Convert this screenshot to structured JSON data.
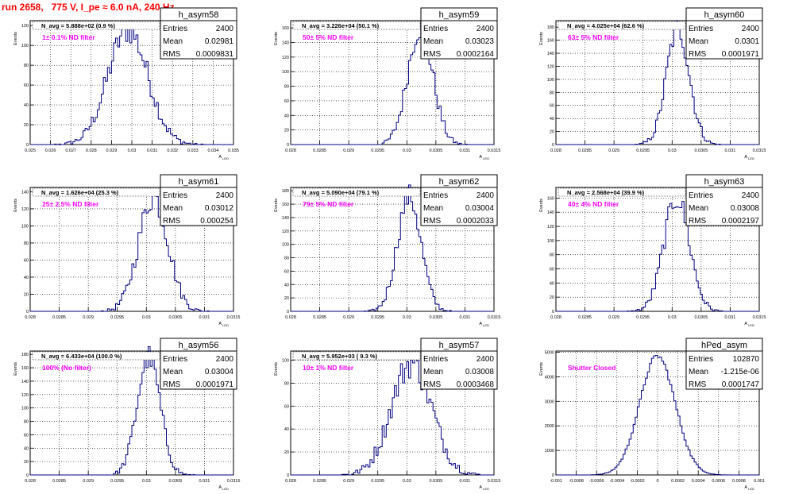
{
  "page_title": "run 2658,   775 V, I_pe ≈ 6.0 nA, 240 Hz",
  "style": {
    "hist_color": "#000080",
    "note_color": "#ff00ff",
    "title_color": "#ff0000"
  },
  "chart_data": [
    {
      "type": "histogram",
      "name": "h_asym58",
      "ylabel": "Events",
      "xlabel": "A_LED",
      "navg": "N_avg = 5.888e+02 (0.9 %)",
      "note": "1± 0.1% ND filter",
      "stats": [
        [
          "Entries",
          "2400"
        ],
        [
          "Mean",
          "0.02981"
        ],
        [
          "RMS",
          "0.0009831"
        ]
      ],
      "xlim": [
        0.025,
        0.035
      ],
      "ylim": [
        0,
        125
      ],
      "yticks": [
        0,
        20,
        40,
        60,
        80,
        100,
        120
      ],
      "xticks": [
        "0.025",
        "0.026",
        "0.027",
        "0.028",
        "0.029",
        "0.03",
        "0.031",
        "0.032",
        "0.033",
        "0.034",
        "0.035"
      ],
      "dist": {
        "mean": 0.02981,
        "sigma": 0.00098,
        "peak": 116,
        "nbins": 100
      }
    },
    {
      "type": "histogram",
      "name": "h_asym59",
      "ylabel": "Events",
      "xlabel": "A_LED",
      "navg": "N_avg = 3.226e+04 (50.1 %)",
      "note": "50± 5% ND filter",
      "stats": [
        [
          "Entries",
          "2400"
        ],
        [
          "Mean",
          "0.03023"
        ],
        [
          "RMS",
          "0.0002164"
        ]
      ],
      "xlim": [
        0.028,
        0.0315
      ],
      "ylim": [
        0,
        170
      ],
      "yticks": [
        0,
        20,
        40,
        60,
        80,
        100,
        120,
        140,
        160
      ],
      "xticks": [
        "0.028",
        "0.0285",
        "0.029",
        "0.0295",
        "0.03",
        "0.0305",
        "0.031",
        "0.0315"
      ],
      "dist": {
        "mean": 0.03023,
        "sigma": 0.000216,
        "peak": 160,
        "nbins": 100
      }
    },
    {
      "type": "histogram",
      "name": "h_asym60",
      "ylabel": "Events",
      "xlabel": "A_LED",
      "navg": "N_avg = 4.025e+04 (62.6 %)",
      "note": "63± 5% ND filter",
      "stats": [
        [
          "Entries",
          "2400"
        ],
        [
          "Mean",
          "0.0301"
        ],
        [
          "RMS",
          "0.0001971"
        ]
      ],
      "xlim": [
        0.028,
        0.0315
      ],
      "ylim": [
        0,
        190
      ],
      "yticks": [
        0,
        20,
        40,
        60,
        80,
        100,
        120,
        140,
        160,
        180
      ],
      "xticks": [
        "0.028",
        "0.0285",
        "0.029",
        "0.0295",
        "0.03",
        "0.0305",
        "0.031",
        "0.0315"
      ],
      "dist": {
        "mean": 0.0301,
        "sigma": 0.000197,
        "peak": 178,
        "nbins": 100
      }
    },
    {
      "type": "histogram",
      "name": "h_asym61",
      "ylabel": "Events",
      "xlabel": "A_LED",
      "navg": "N_avg = 1.626e+04 (25.3 %)",
      "note": "25± 2.5% ND filter",
      "stats": [
        [
          "Entries",
          "2400"
        ],
        [
          "Mean",
          "0.03012"
        ],
        [
          "RMS",
          "0.000254"
        ]
      ],
      "xlim": [
        0.028,
        0.0315
      ],
      "ylim": [
        0,
        145
      ],
      "yticks": [
        0,
        20,
        40,
        60,
        80,
        100,
        120,
        140
      ],
      "xticks": [
        "0.028",
        "0.0285",
        "0.029",
        "0.0295",
        "0.03",
        "0.0305",
        "0.031",
        "0.0315"
      ],
      "dist": {
        "mean": 0.03012,
        "sigma": 0.000254,
        "peak": 134,
        "nbins": 100
      }
    },
    {
      "type": "histogram",
      "name": "h_asym62",
      "ylabel": "Events",
      "xlabel": "A_LED",
      "navg": "N_avg = 5.090e+04 (79.1 %)",
      "note": "79± 5% ND filter",
      "stats": [
        [
          "Entries",
          "2400"
        ],
        [
          "Mean",
          "0.03004"
        ],
        [
          "RMS",
          "0.0002033"
        ]
      ],
      "xlim": [
        0.028,
        0.0315
      ],
      "ylim": [
        0,
        185
      ],
      "yticks": [
        0,
        20,
        40,
        60,
        80,
        100,
        120,
        140,
        160,
        180
      ],
      "xticks": [
        "0.028",
        "0.0285",
        "0.029",
        "0.0295",
        "0.03",
        "0.0305",
        "0.031",
        "0.0315"
      ],
      "dist": {
        "mean": 0.03004,
        "sigma": 0.000203,
        "peak": 172,
        "nbins": 100
      }
    },
    {
      "type": "histogram",
      "name": "h_asym63",
      "ylabel": "Events",
      "xlabel": "A_LED",
      "navg": "N_avg = 2.568e+04 (39.9 %)",
      "note": "40± 4% ND filter",
      "stats": [
        [
          "Entries",
          "2400"
        ],
        [
          "Mean",
          "0.03008"
        ],
        [
          "RMS",
          "0.0002197"
        ]
      ],
      "xlim": [
        0.028,
        0.0315
      ],
      "ylim": [
        0,
        175
      ],
      "yticks": [
        0,
        20,
        40,
        60,
        80,
        100,
        120,
        140,
        160
      ],
      "xticks": [
        "0.028",
        "0.0285",
        "0.029",
        "0.0295",
        "0.03",
        "0.0305",
        "0.031",
        "0.0315"
      ],
      "dist": {
        "mean": 0.03008,
        "sigma": 0.00022,
        "peak": 160,
        "nbins": 100
      }
    },
    {
      "type": "histogram",
      "name": "h_asym56",
      "ylabel": "Events",
      "xlabel": "A_LED",
      "navg": "N_avg = 6.433e+04 (100.0 %)",
      "note": "100% (No filter)",
      "stats": [
        [
          "Entries",
          "2400"
        ],
        [
          "Mean",
          "0.03004"
        ],
        [
          "RMS",
          "0.0001971"
        ]
      ],
      "xlim": [
        0.028,
        0.0315
      ],
      "ylim": [
        0,
        185
      ],
      "yticks": [
        0,
        20,
        40,
        60,
        80,
        100,
        120,
        140,
        160,
        180
      ],
      "xticks": [
        "0.028",
        "0.0285",
        "0.029",
        "0.0295",
        "0.03",
        "0.0305",
        "0.031",
        "0.0315"
      ],
      "dist": {
        "mean": 0.03004,
        "sigma": 0.000197,
        "peak": 176,
        "nbins": 100
      }
    },
    {
      "type": "histogram",
      "name": "h_asym57",
      "ylabel": "Events",
      "xlabel": "A_LED",
      "navg": "N_avg = 5.952e+03 ( 9.3 %)",
      "note": "10± 1% ND filter",
      "stats": [
        [
          "Entries",
          "2400"
        ],
        [
          "Mean",
          "0.03008"
        ],
        [
          "RMS",
          "0.0003468"
        ]
      ],
      "xlim": [
        0.028,
        0.0315
      ],
      "ylim": [
        0,
        108
      ],
      "yticks": [
        0,
        20,
        40,
        60,
        80,
        100
      ],
      "xticks": [
        "0.028",
        "0.0285",
        "0.029",
        "0.0295",
        "0.03",
        "0.0305",
        "0.031",
        "0.0315"
      ],
      "dist": {
        "mean": 0.03008,
        "sigma": 0.000347,
        "peak": 98,
        "nbins": 100
      }
    },
    {
      "type": "histogram",
      "name": "hPed_asym",
      "ylabel": "Events",
      "xlabel": "A_LED",
      "navg": "",
      "note": "Shutter Closed",
      "stats": [
        [
          "Entries",
          "102870"
        ],
        [
          "Mean",
          "-1.215e-06"
        ],
        [
          "RMS",
          "0.0001747"
        ]
      ],
      "xlim": [
        -0.001,
        0.001
      ],
      "ylim": [
        0,
        5050
      ],
      "yticks": [
        0,
        1000,
        2000,
        3000,
        4000,
        5000
      ],
      "xticks": [
        "-0.001",
        "-0.0008",
        "-0.0006",
        "-0.0004",
        "-0.0002",
        "0",
        "0.0002",
        "0.0004",
        "0.0006",
        "0.0008",
        "0.001"
      ],
      "dist": {
        "mean": -1.215e-06,
        "sigma": 0.000175,
        "peak": 4850,
        "nbins": 100
      }
    }
  ]
}
